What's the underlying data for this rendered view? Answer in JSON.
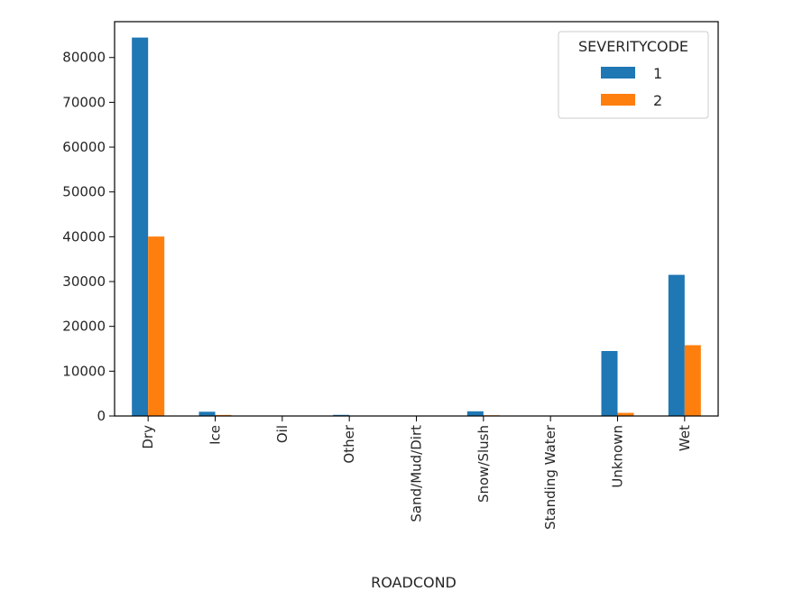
{
  "chart_data": {
    "type": "bar",
    "title": "",
    "xlabel": "ROADCOND",
    "ylabel": "",
    "categories": [
      "Dry",
      "Ice",
      "Oil",
      "Other",
      "Sand/Mud/Dirt",
      "Snow/Slush",
      "Standing Water",
      "Unknown",
      "Wet"
    ],
    "series": [
      {
        "name": "1",
        "color": "#1f77b4",
        "values": [
          84450,
          950,
          20,
          250,
          70,
          1050,
          70,
          14500,
          31500
        ]
      },
      {
        "name": "2",
        "color": "#ff7f0e",
        "values": [
          40050,
          230,
          15,
          80,
          30,
          160,
          30,
          700,
          15800
        ]
      }
    ],
    "ylim": [
      0,
      88000
    ],
    "yticks": [
      0,
      10000,
      20000,
      30000,
      40000,
      50000,
      60000,
      70000,
      80000
    ],
    "ytick_labels": [
      "0",
      "10000",
      "20000",
      "30000",
      "40000",
      "50000",
      "60000",
      "70000",
      "80000"
    ],
    "legend": {
      "title": "SEVERITYCODE",
      "position": "top-right"
    },
    "grid": false
  }
}
